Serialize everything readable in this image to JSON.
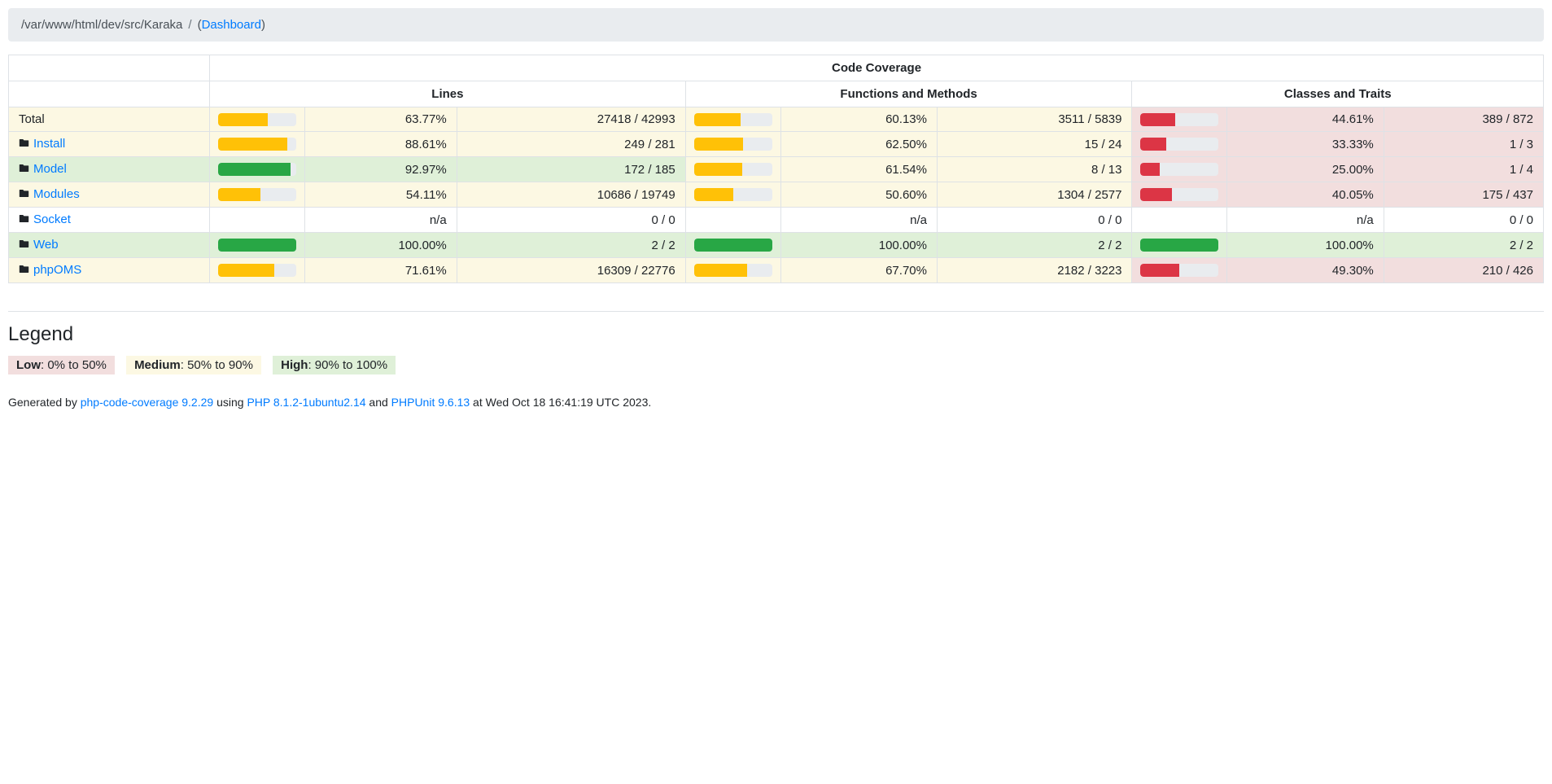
{
  "breadcrumb": {
    "path": "/var/www/html/dev/src/Karaka",
    "separator": "/",
    "active_prefix": "(",
    "active_link": "Dashboard",
    "active_suffix": ")"
  },
  "table": {
    "title": "Code Coverage",
    "groups": [
      "Lines",
      "Functions and Methods",
      "Classes and Traits"
    ],
    "rows": [
      {
        "name": "Total",
        "level": "warning",
        "lines": {
          "pct": "63.77%",
          "pct_value": 63.77,
          "ratio": "27418 / 42993",
          "level": "warning"
        },
        "functions": {
          "pct": "60.13%",
          "pct_value": 60.13,
          "ratio": "3511 / 5839",
          "level": "warning"
        },
        "classes": {
          "pct": "44.61%",
          "pct_value": 44.61,
          "ratio": "389 / 872",
          "level": "danger"
        }
      },
      {
        "name": "Install",
        "level": "warning",
        "lines": {
          "pct": "88.61%",
          "pct_value": 88.61,
          "ratio": "249 / 281",
          "level": "warning"
        },
        "functions": {
          "pct": "62.50%",
          "pct_value": 62.5,
          "ratio": "15 / 24",
          "level": "warning"
        },
        "classes": {
          "pct": "33.33%",
          "pct_value": 33.33,
          "ratio": "1 / 3",
          "level": "danger"
        }
      },
      {
        "name": "Model",
        "level": "success",
        "lines": {
          "pct": "92.97%",
          "pct_value": 92.97,
          "ratio": "172 / 185",
          "level": "success"
        },
        "functions": {
          "pct": "61.54%",
          "pct_value": 61.54,
          "ratio": "8 / 13",
          "level": "warning"
        },
        "classes": {
          "pct": "25.00%",
          "pct_value": 25.0,
          "ratio": "1 / 4",
          "level": "danger"
        }
      },
      {
        "name": "Modules",
        "level": "warning",
        "lines": {
          "pct": "54.11%",
          "pct_value": 54.11,
          "ratio": "10686 / 19749",
          "level": "warning"
        },
        "functions": {
          "pct": "50.60%",
          "pct_value": 50.6,
          "ratio": "1304 / 2577",
          "level": "warning"
        },
        "classes": {
          "pct": "40.05%",
          "pct_value": 40.05,
          "ratio": "175 / 437",
          "level": "danger"
        }
      },
      {
        "name": "Socket",
        "level": "none",
        "lines": {
          "pct": "n/a",
          "pct_value": null,
          "ratio": "0 / 0",
          "level": "none"
        },
        "functions": {
          "pct": "n/a",
          "pct_value": null,
          "ratio": "0 / 0",
          "level": "none"
        },
        "classes": {
          "pct": "n/a",
          "pct_value": null,
          "ratio": "0 / 0",
          "level": "none"
        }
      },
      {
        "name": "Web",
        "level": "success",
        "lines": {
          "pct": "100.00%",
          "pct_value": 100,
          "ratio": "2 / 2",
          "level": "success"
        },
        "functions": {
          "pct": "100.00%",
          "pct_value": 100,
          "ratio": "2 / 2",
          "level": "success"
        },
        "classes": {
          "pct": "100.00%",
          "pct_value": 100,
          "ratio": "2 / 2",
          "level": "success"
        }
      },
      {
        "name": "phpOMS",
        "level": "warning",
        "lines": {
          "pct": "71.61%",
          "pct_value": 71.61,
          "ratio": "16309 / 22776",
          "level": "warning"
        },
        "functions": {
          "pct": "67.70%",
          "pct_value": 67.7,
          "ratio": "2182 / 3223",
          "level": "warning"
        },
        "classes": {
          "pct": "49.30%",
          "pct_value": 49.3,
          "ratio": "210 / 426",
          "level": "danger"
        }
      }
    ]
  },
  "legend": {
    "title": "Legend",
    "items": [
      {
        "label": "Low",
        "range": ": 0% to 50%",
        "level": "danger"
      },
      {
        "label": "Medium",
        "range": ": 50% to 90%",
        "level": "warning"
      },
      {
        "label": "High",
        "range": ": 90% to 100%",
        "level": "success"
      }
    ]
  },
  "footer": {
    "prefix": "Generated by ",
    "tool_link": "php-code-coverage 9.2.29",
    "using": " using ",
    "php_link": "PHP 8.1.2-1ubuntu2.14",
    "and": " and ",
    "phpunit_link": "PHPUnit 9.6.13",
    "suffix": " at Wed Oct 18 16:41:19 UTC 2023."
  },
  "colors": {
    "warning_bg": "#fcf8e3",
    "success_bg": "#dff0d8",
    "danger_bg": "#f2dede",
    "bar_warning": "#ffc107",
    "bar_success": "#28a745",
    "bar_danger": "#dc3545",
    "bar_track": "#e9ecef",
    "link": "#007bff",
    "breadcrumb_bg": "#e9ecef"
  }
}
